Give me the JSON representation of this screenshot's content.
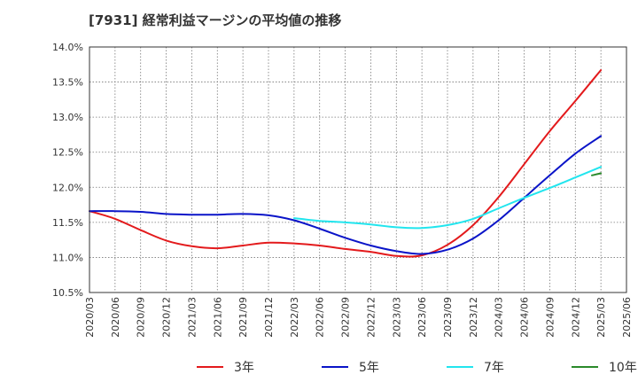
{
  "chart_data": {
    "type": "line",
    "title": "[7931]  経常利益マージンの平均値の推移",
    "xlabel": "",
    "ylabel": "",
    "x": [
      "2020/03",
      "2020/06",
      "2020/09",
      "2020/12",
      "2021/03",
      "2021/06",
      "2021/09",
      "2021/12",
      "2022/03",
      "2022/06",
      "2022/09",
      "2022/12",
      "2023/03",
      "2023/06",
      "2023/09",
      "2023/12",
      "2024/03",
      "2024/06",
      "2024/09",
      "2024/12",
      "2025/03",
      "2025/06"
    ],
    "y_ticks": [
      "10.5%",
      "11.0%",
      "11.5%",
      "12.0%",
      "12.5%",
      "13.0%",
      "13.5%",
      "14.0%"
    ],
    "ylim": [
      10.5,
      14.0
    ],
    "grid": true,
    "legend_position": "bottom",
    "series": [
      {
        "name": "3年",
        "color": "#e31a1c",
        "values": [
          11.66,
          11.55,
          11.39,
          11.24,
          11.16,
          11.13,
          11.17,
          11.21,
          11.2,
          11.17,
          11.12,
          11.08,
          11.02,
          11.03,
          11.18,
          11.46,
          11.86,
          12.33,
          12.8,
          13.23,
          13.67,
          null
        ]
      },
      {
        "name": "5年",
        "color": "#0a14c8",
        "values": [
          11.66,
          11.66,
          11.65,
          11.62,
          11.61,
          11.61,
          11.62,
          11.6,
          11.53,
          11.41,
          11.28,
          11.17,
          11.09,
          11.05,
          11.11,
          11.27,
          11.53,
          11.85,
          12.17,
          12.48,
          12.73,
          null
        ]
      },
      {
        "name": "7年",
        "color": "#22e5ee",
        "values": [
          null,
          null,
          null,
          null,
          null,
          null,
          null,
          null,
          11.56,
          11.52,
          11.5,
          11.47,
          11.43,
          11.42,
          11.46,
          11.55,
          11.7,
          11.85,
          11.99,
          12.14,
          12.29,
          null
        ]
      },
      {
        "name": "10年",
        "color": "#2a8a2a",
        "values": [
          null,
          null,
          null,
          null,
          null,
          null,
          null,
          null,
          null,
          null,
          null,
          null,
          null,
          null,
          null,
          null,
          null,
          null,
          null,
          null,
          12.2,
          null
        ],
        "segment_start": 12.17
      }
    ]
  }
}
